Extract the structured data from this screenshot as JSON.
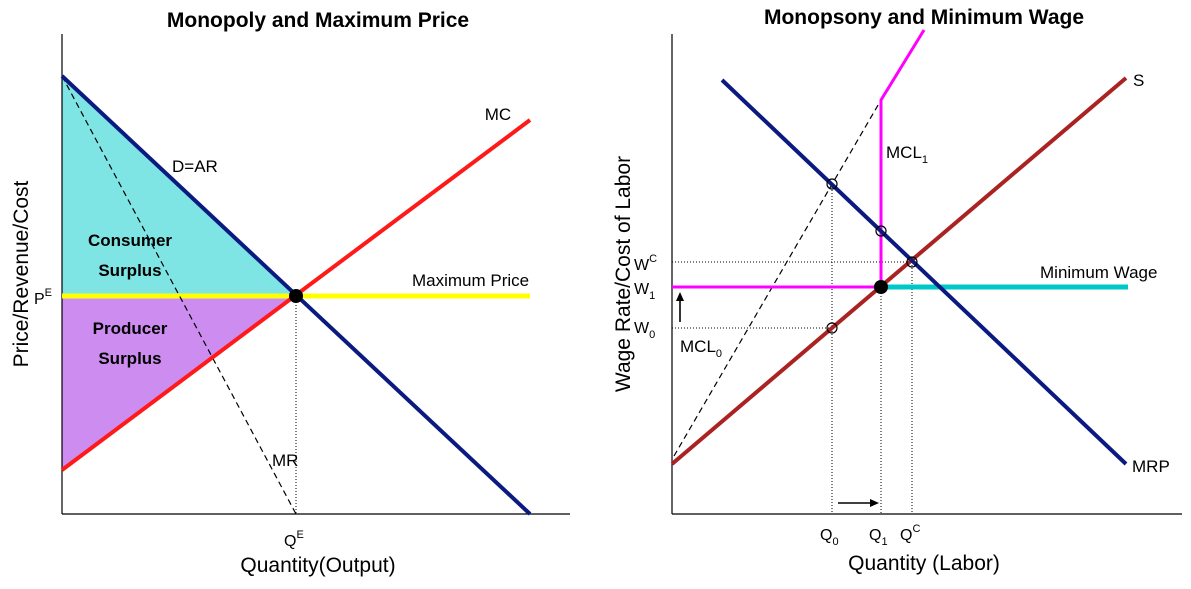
{
  "left_panel": {
    "title": "Monopoly and Maximum Price",
    "y_axis_label": "Price/Revenue/Cost",
    "x_axis_label": "Quantity(Output)",
    "curves": {
      "mc": "MC",
      "demand": "D=AR",
      "mr": "MR",
      "max_price": "Maximum Price"
    },
    "areas": {
      "consumer_line1": "Consumer",
      "consumer_line2": "Surplus",
      "producer_line1": "Producer",
      "producer_line2": "Surplus"
    },
    "ticks": {
      "price": "P",
      "price_sup": "E",
      "quantity": "Q",
      "quantity_sup": "E"
    }
  },
  "right_panel": {
    "title": "Monopsony and Minimum Wage",
    "y_axis_label": "Wage Rate/Cost of Labor",
    "x_axis_label": "Quantity (Labor)",
    "curves": {
      "supply": "S",
      "mrp": "MRP",
      "min_wage": "Minimum Wage",
      "mcl1": "MCL",
      "mcl1_sub": "1",
      "mcl0": "MCL",
      "mcl0_sub": "0"
    },
    "ticks": {
      "wc": "W",
      "wc_sup": "C",
      "w1": "W",
      "w1_sub": "1",
      "w0": "W",
      "w0_sub": "0",
      "q0": "Q",
      "q0_sub": "0",
      "q1": "Q",
      "q1_sub": "1",
      "qc": "Q",
      "qc_sup": "C"
    }
  },
  "colors": {
    "demand": "#0a1a80",
    "mc": "#ff1a1a",
    "max_price": "#ffff00",
    "consumer_surplus": "#7fe4e4",
    "producer_surplus": "#cc8cf0",
    "supply": "#aa2222",
    "mcl": "#ff00ff",
    "min_wage": "#00c8c8"
  }
}
